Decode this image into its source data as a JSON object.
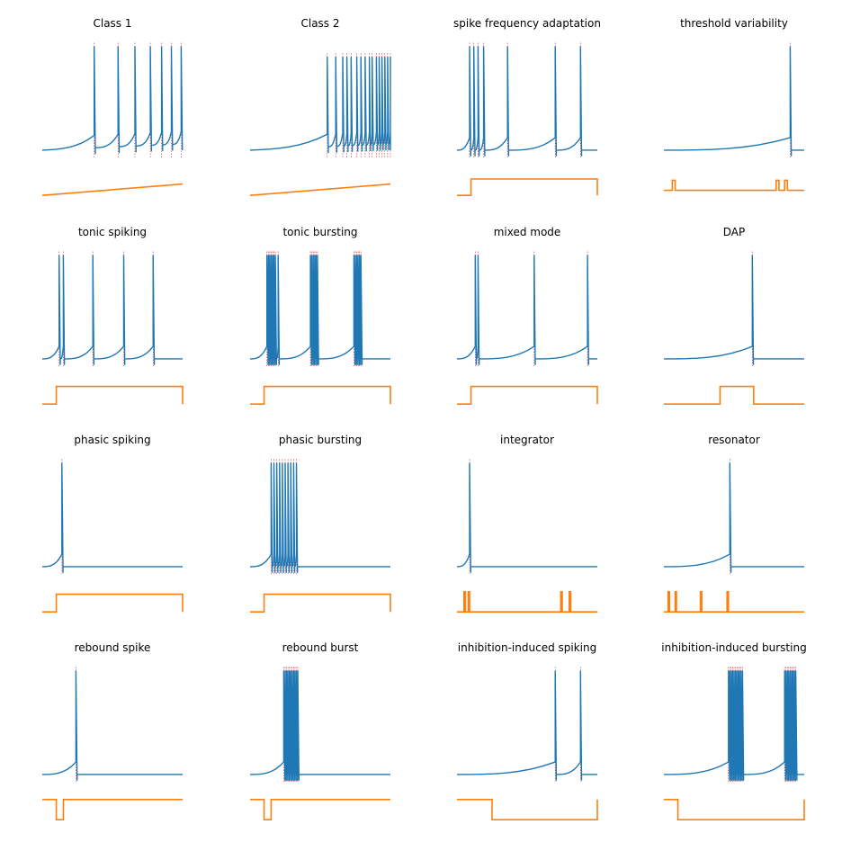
{
  "colors": {
    "voltage": "#1f77b4",
    "current": "#ff7f0e",
    "spike_marker": "#d62728"
  },
  "chart_data": [
    {
      "type": "line",
      "title": "Class 1",
      "series": [
        {
          "name": "",
          "values": []
        },
        {
          "name": "",
          "values": []
        }
      ],
      "voltage": {
        "ylim": [
          -90,
          40
        ],
        "rest": -70,
        "drift": 6,
        "spikes": [
          0.37,
          0.54,
          0.66,
          0.77,
          0.85,
          0.92,
          0.99
        ],
        "spike_peak": 30
      },
      "current": {
        "kind": "ramp",
        "ylim": [
          0,
          1
        ],
        "from": 0.1,
        "to": 0.55
      }
    },
    {
      "type": "line",
      "title": "Class 2",
      "series": [
        {
          "name": "",
          "values": []
        },
        {
          "name": "",
          "values": []
        }
      ],
      "voltage": {
        "ylim": [
          -90,
          40
        ],
        "rest": -70,
        "drift": 6,
        "spikes": [
          0.55,
          0.61,
          0.66,
          0.69,
          0.72,
          0.76,
          0.79,
          0.82,
          0.85,
          0.87,
          0.9,
          0.92,
          0.94,
          0.96,
          0.98,
          1.0
        ],
        "spike_peak": 20
      },
      "current": {
        "kind": "ramp",
        "ylim": [
          0,
          1
        ],
        "from": 0.1,
        "to": 0.55
      }
    },
    {
      "type": "line",
      "title": "spike frequency adaptation",
      "series": [
        {
          "name": "",
          "values": []
        },
        {
          "name": "",
          "values": []
        }
      ],
      "voltage": {
        "ylim": [
          -90,
          40
        ],
        "rest": -70,
        "drift": 0,
        "spikes": [
          0.09,
          0.12,
          0.15,
          0.19,
          0.36,
          0.7,
          0.88
        ],
        "spike_peak": 30
      },
      "current": {
        "kind": "step",
        "ylim": [
          0,
          1
        ],
        "base": 0.1,
        "level": 0.75,
        "steps": [
          [
            0.1,
            1
          ]
        ]
      }
    },
    {
      "type": "line",
      "title": "threshold variability",
      "series": [
        {
          "name": "",
          "values": []
        },
        {
          "name": "",
          "values": []
        }
      ],
      "voltage": {
        "ylim": [
          -90,
          40
        ],
        "rest": -70,
        "drift": 0,
        "spikes": [
          0.9
        ],
        "spike_peak": 30
      },
      "current": {
        "kind": "step",
        "ylim": [
          0,
          1
        ],
        "base": 0.3,
        "level": 0.7,
        "steps": [
          [
            0.06,
            0.08
          ],
          [
            0.8,
            0.82
          ],
          [
            0.86,
            0.88
          ]
        ]
      }
    },
    {
      "type": "line",
      "title": "tonic spiking",
      "series": [
        {
          "name": "",
          "values": []
        },
        {
          "name": "",
          "values": []
        }
      ],
      "voltage": {
        "ylim": [
          -90,
          40
        ],
        "rest": -70,
        "drift": 0,
        "spikes": [
          0.12,
          0.15,
          0.36,
          0.58,
          0.79
        ],
        "spike_peak": 30
      },
      "current": {
        "kind": "step",
        "ylim": [
          0,
          1
        ],
        "base": 0.1,
        "level": 0.8,
        "steps": [
          [
            0.1,
            1
          ]
        ]
      }
    },
    {
      "type": "line",
      "title": "tonic bursting",
      "series": [
        {
          "name": "",
          "values": []
        },
        {
          "name": "",
          "values": []
        }
      ],
      "voltage": {
        "ylim": [
          -90,
          40
        ],
        "rest": -70,
        "drift": 0,
        "spikes": [
          0.12,
          0.13,
          0.14,
          0.15,
          0.16,
          0.17,
          0.18,
          0.2,
          0.43,
          0.44,
          0.45,
          0.46,
          0.47,
          0.48,
          0.74,
          0.75,
          0.76,
          0.77,
          0.78,
          0.79
        ],
        "spike_peak": 30
      },
      "current": {
        "kind": "step",
        "ylim": [
          0,
          1
        ],
        "base": 0.1,
        "level": 0.8,
        "steps": [
          [
            0.1,
            1
          ]
        ]
      }
    },
    {
      "type": "line",
      "title": "mixed mode",
      "series": [
        {
          "name": "",
          "values": []
        },
        {
          "name": "",
          "values": []
        }
      ],
      "voltage": {
        "ylim": [
          -90,
          40
        ],
        "rest": -70,
        "drift": 0,
        "spikes": [
          0.13,
          0.15,
          0.55,
          0.93
        ],
        "spike_peak": 30
      },
      "current": {
        "kind": "step",
        "ylim": [
          0,
          1
        ],
        "base": 0.1,
        "level": 0.8,
        "steps": [
          [
            0.1,
            1
          ]
        ]
      }
    },
    {
      "type": "line",
      "title": "DAP",
      "series": [
        {
          "name": "",
          "values": []
        },
        {
          "name": "",
          "values": []
        }
      ],
      "voltage": {
        "ylim": [
          -90,
          40
        ],
        "rest": -70,
        "drift": 0,
        "spikes": [
          0.63
        ],
        "spike_peak": 30
      },
      "current": {
        "kind": "step",
        "ylim": [
          0,
          1
        ],
        "base": 0.1,
        "level": 0.8,
        "steps": [
          [
            0.4,
            0.64
          ]
        ]
      }
    },
    {
      "type": "line",
      "title": "phasic spiking",
      "series": [
        {
          "name": "",
          "values": []
        },
        {
          "name": "",
          "values": []
        }
      ],
      "voltage": {
        "ylim": [
          -90,
          40
        ],
        "rest": -70,
        "drift": 0,
        "spikes": [
          0.14
        ],
        "spike_peak": 30
      },
      "current": {
        "kind": "step",
        "ylim": [
          0,
          1
        ],
        "base": 0.1,
        "level": 0.8,
        "steps": [
          [
            0.1,
            1
          ]
        ]
      }
    },
    {
      "type": "line",
      "title": "phasic bursting",
      "series": [
        {
          "name": "",
          "values": []
        },
        {
          "name": "",
          "values": []
        }
      ],
      "voltage": {
        "ylim": [
          -90,
          40
        ],
        "rest": -70,
        "drift": 0,
        "spikes": [
          0.15,
          0.17,
          0.19,
          0.21,
          0.23,
          0.25,
          0.27,
          0.29,
          0.31,
          0.33
        ],
        "spike_peak": 30
      },
      "current": {
        "kind": "step",
        "ylim": [
          0,
          1
        ],
        "base": 0.1,
        "level": 0.8,
        "steps": [
          [
            0.1,
            1
          ]
        ]
      }
    },
    {
      "type": "line",
      "title": "integrator",
      "series": [
        {
          "name": "",
          "values": []
        },
        {
          "name": "",
          "values": []
        }
      ],
      "voltage": {
        "ylim": [
          -90,
          40
        ],
        "rest": -70,
        "drift": 0,
        "spikes": [
          0.09
        ],
        "spike_peak": 30
      },
      "current": {
        "kind": "step",
        "ylim": [
          0,
          1
        ],
        "base": 0.1,
        "level": 0.9,
        "steps": [
          [
            0.05,
            0.06
          ],
          [
            0.08,
            0.09
          ],
          [
            0.74,
            0.75
          ],
          [
            0.8,
            0.81
          ]
        ]
      }
    },
    {
      "type": "line",
      "title": "resonator",
      "series": [
        {
          "name": "",
          "values": []
        },
        {
          "name": "",
          "values": []
        }
      ],
      "voltage": {
        "ylim": [
          -90,
          40
        ],
        "rest": -70,
        "drift": 0,
        "spikes": [
          0.47
        ],
        "spike_peak": 30
      },
      "current": {
        "kind": "step",
        "ylim": [
          0,
          1
        ],
        "base": 0.1,
        "level": 0.9,
        "steps": [
          [
            0.03,
            0.04
          ],
          [
            0.08,
            0.09
          ],
          [
            0.26,
            0.27
          ],
          [
            0.45,
            0.46
          ]
        ]
      }
    },
    {
      "type": "line",
      "title": "rebound spike",
      "series": [
        {
          "name": "",
          "values": []
        },
        {
          "name": "",
          "values": []
        }
      ],
      "voltage": {
        "ylim": [
          -90,
          40
        ],
        "rest": -70,
        "drift": 0,
        "spikes": [
          0.24
        ],
        "spike_peak": 30
      },
      "current": {
        "kind": "step",
        "ylim": [
          0,
          1
        ],
        "base": 0.9,
        "level": 0.1,
        "steps": [
          [
            0.1,
            0.15
          ]
        ]
      }
    },
    {
      "type": "line",
      "title": "rebound burst",
      "series": [
        {
          "name": "",
          "values": []
        },
        {
          "name": "",
          "values": []
        }
      ],
      "voltage": {
        "ylim": [
          -90,
          40
        ],
        "rest": -70,
        "drift": 0,
        "spikes": [
          0.24,
          0.25,
          0.26,
          0.27,
          0.28,
          0.29,
          0.3,
          0.31,
          0.32,
          0.33,
          0.34
        ],
        "spike_peak": 30
      },
      "current": {
        "kind": "step",
        "ylim": [
          0,
          1
        ],
        "base": 0.9,
        "level": 0.1,
        "steps": [
          [
            0.1,
            0.15
          ]
        ]
      }
    },
    {
      "type": "line",
      "title": "inhibition-induced spiking",
      "series": [
        {
          "name": "",
          "values": []
        },
        {
          "name": "",
          "values": []
        }
      ],
      "voltage": {
        "ylim": [
          -90,
          40
        ],
        "rest": -70,
        "drift": 0,
        "spikes": [
          0.7,
          0.88
        ],
        "spike_peak": 30
      },
      "current": {
        "kind": "step",
        "ylim": [
          0,
          1
        ],
        "base": 0.9,
        "level": 0.1,
        "steps": [
          [
            0.25,
            1
          ]
        ]
      }
    },
    {
      "type": "line",
      "title": "inhibition-induced bursting",
      "series": [
        {
          "name": "",
          "values": []
        },
        {
          "name": "",
          "values": []
        }
      ],
      "voltage": {
        "ylim": [
          -90,
          40
        ],
        "rest": -70,
        "drift": 0,
        "spikes": [
          0.46,
          0.47,
          0.48,
          0.49,
          0.5,
          0.51,
          0.52,
          0.53,
          0.54,
          0.55,
          0.56,
          0.86,
          0.87,
          0.88,
          0.89,
          0.9,
          0.91,
          0.92,
          0.93,
          0.94
        ],
        "spike_peak": 30
      },
      "current": {
        "kind": "step",
        "ylim": [
          0,
          1
        ],
        "base": 0.9,
        "level": 0.1,
        "steps": [
          [
            0.1,
            1
          ]
        ]
      }
    }
  ]
}
